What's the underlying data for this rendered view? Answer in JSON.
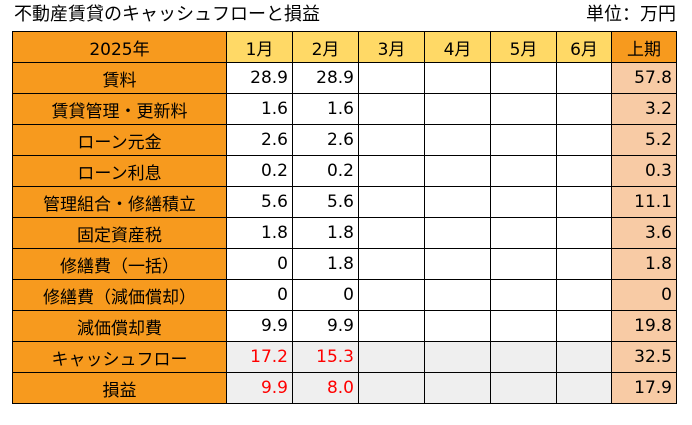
{
  "title": "不動産賃貸のキャッシュフローと損益",
  "unit": "単位：万円",
  "header": {
    "year": "2025年",
    "months": [
      "1月",
      "2月",
      "3月",
      "4月",
      "5月",
      "6月"
    ],
    "half": "上期"
  },
  "rows": [
    {
      "label": "賃料",
      "values": [
        "28.9",
        "28.9",
        "",
        "",
        "",
        ""
      ],
      "total": "57.8"
    },
    {
      "label": "賃貸管理・更新料",
      "values": [
        "1.6",
        "1.6",
        "",
        "",
        "",
        ""
      ],
      "total": "3.2"
    },
    {
      "label": "ローン元金",
      "values": [
        "2.6",
        "2.6",
        "",
        "",
        "",
        ""
      ],
      "total": "5.2"
    },
    {
      "label": "ローン利息",
      "values": [
        "0.2",
        "0.2",
        "",
        "",
        "",
        ""
      ],
      "total": "0.3"
    },
    {
      "label": "管理組合・修繕積立",
      "values": [
        "5.6",
        "5.6",
        "",
        "",
        "",
        ""
      ],
      "total": "11.1"
    },
    {
      "label": "固定資産税",
      "values": [
        "1.8",
        "1.8",
        "",
        "",
        "",
        ""
      ],
      "total": "3.6"
    },
    {
      "label": "修繕費（一括）",
      "values": [
        "0",
        "1.8",
        "",
        "",
        "",
        ""
      ],
      "total": "1.8"
    },
    {
      "label": "修繕費（減価償却）",
      "values": [
        "0",
        "0",
        "",
        "",
        "",
        ""
      ],
      "total": "0"
    },
    {
      "label": "減価償却費",
      "values": [
        "9.9",
        "9.9",
        "",
        "",
        "",
        ""
      ],
      "total": "19.8"
    },
    {
      "label": "キャッシュフロー",
      "values": [
        "17.2",
        "15.3",
        "",
        "",
        "",
        ""
      ],
      "total": "32.5"
    },
    {
      "label": "損益",
      "values": [
        "9.9",
        "8.0",
        "",
        "",
        "",
        ""
      ],
      "total": "17.9"
    }
  ],
  "colors": {
    "label_bg": "#f79a1e",
    "month_header_bg": "#ffd966",
    "half_col_bg": "#f8cba5",
    "shaded_row_bg": "#efefef",
    "highlight_text": "#ff0000"
  }
}
